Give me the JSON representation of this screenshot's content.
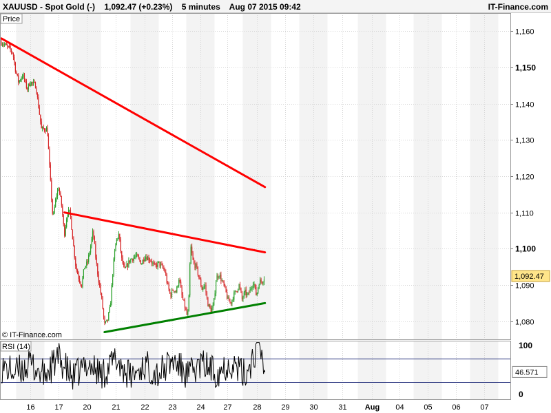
{
  "header": {
    "symbol": "XAUUSD - Spot Gold (-)",
    "last": "1,092.47 (+0.23%)",
    "interval": "5 minutes",
    "datetime": "Aug 07 2015 09:42",
    "brand": "IT-Finance.com"
  },
  "price_panel": {
    "label": "Price",
    "watermark": "© IT-Finance.com",
    "current_price_label": "1,092.47",
    "current_price": 1092.47
  },
  "rsi_panel": {
    "label": "RSI (14)",
    "current_label": "46.571",
    "current": 46.571
  },
  "colors": {
    "up": "#2ca02c",
    "down": "#d62728",
    "trendline_resistance": "#ff0000",
    "trendline_support": "#008000",
    "price_tag": "#ffe58a",
    "rsi_band": "#1e2a78"
  },
  "chart_data": [
    {
      "type": "line",
      "title": "",
      "ylim": [
        1075,
        1165
      ],
      "y_scale": "linear",
      "y_ticks": [
        1080,
        1090,
        1100,
        1110,
        1120,
        1130,
        1140,
        1150,
        1160
      ],
      "y_tick_labels": [
        "1,080",
        "1,090",
        "1,100",
        "1,110",
        "1,120",
        "1,130",
        "1,140",
        "1,150",
        "1,160"
      ],
      "y_tick_bold": [
        false,
        false,
        true,
        false,
        false,
        false,
        false,
        true,
        false
      ],
      "x_index_range": [
        0,
        17.2
      ],
      "x_tick_labels": [
        "16",
        "17",
        "20",
        "21",
        "22",
        "23",
        "24",
        "27",
        "28",
        "29",
        "30",
        "31",
        "Aug",
        "04",
        "05",
        "06",
        "07"
      ],
      "x_tick_bold": [
        false,
        false,
        false,
        false,
        false,
        false,
        false,
        false,
        false,
        false,
        false,
        false,
        true,
        false,
        false,
        false,
        false
      ],
      "grid": true,
      "legend": "none",
      "series": [
        {
          "values": [
            [
              0.0,
              1157
            ],
            [
              0.15,
              1156
            ],
            [
              0.3,
              1155
            ],
            [
              0.4,
              1154
            ],
            [
              0.5,
              1149
            ],
            [
              0.6,
              1146
            ],
            [
              0.75,
              1148
            ],
            [
              0.9,
              1144
            ],
            [
              1.0,
              1146
            ],
            [
              1.2,
              1145
            ],
            [
              1.3,
              1139
            ],
            [
              1.4,
              1133
            ],
            [
              1.6,
              1133
            ],
            [
              1.7,
              1120
            ],
            [
              1.8,
              1108
            ],
            [
              1.9,
              1114
            ],
            [
              2.0,
              1117
            ],
            [
              2.1,
              1112
            ],
            [
              2.2,
              1104
            ],
            [
              2.3,
              1110
            ],
            [
              2.4,
              1110
            ],
            [
              2.5,
              1102
            ],
            [
              2.6,
              1095
            ],
            [
              2.7,
              1092
            ],
            [
              2.8,
              1090
            ],
            [
              2.9,
              1095
            ],
            [
              3.0,
              1096
            ],
            [
              3.1,
              1100
            ],
            [
              3.2,
              1105
            ],
            [
              3.3,
              1097
            ],
            [
              3.4,
              1091
            ],
            [
              3.5,
              1086
            ],
            [
              3.6,
              1079
            ],
            [
              3.7,
              1080
            ],
            [
              3.8,
              1084
            ],
            [
              3.9,
              1095
            ],
            [
              4.0,
              1102
            ],
            [
              4.1,
              1104
            ],
            [
              4.2,
              1097
            ],
            [
              4.3,
              1094
            ],
            [
              4.5,
              1097
            ],
            [
              4.7,
              1098
            ],
            [
              4.9,
              1096
            ],
            [
              5.0,
              1098
            ],
            [
              5.2,
              1097
            ],
            [
              5.35,
              1095
            ],
            [
              5.5,
              1096
            ],
            [
              5.7,
              1094
            ],
            [
              5.8,
              1090
            ],
            [
              5.9,
              1087
            ],
            [
              6.0,
              1089
            ],
            [
              6.1,
              1088
            ],
            [
              6.2,
              1092
            ],
            [
              6.3,
              1087
            ],
            [
              6.4,
              1084
            ],
            [
              6.5,
              1081
            ],
            [
              6.55,
              1087
            ],
            [
              6.6,
              1101
            ],
            [
              6.7,
              1096
            ],
            [
              6.8,
              1095
            ],
            [
              6.9,
              1092
            ],
            [
              7.0,
              1089
            ],
            [
              7.1,
              1090
            ],
            [
              7.2,
              1085
            ],
            [
              7.3,
              1083
            ],
            [
              7.4,
              1084
            ],
            [
              7.5,
              1092
            ],
            [
              7.6,
              1093
            ],
            [
              7.7,
              1091
            ],
            [
              7.8,
              1089
            ],
            [
              7.9,
              1086
            ],
            [
              8.0,
              1085
            ],
            [
              8.1,
              1087
            ],
            [
              8.3,
              1090
            ],
            [
              8.4,
              1086
            ],
            [
              8.5,
              1088
            ],
            [
              8.6,
              1087
            ],
            [
              8.7,
              1089
            ],
            [
              8.8,
              1091
            ],
            [
              8.9,
              1087
            ],
            [
              9.0,
              1091
            ],
            [
              9.1,
              1091
            ],
            [
              9.2,
              1092.47
            ]
          ]
        }
      ],
      "annotations": [
        {
          "type": "trendline",
          "color": "red",
          "points": [
            [
              0.0,
              1158
            ],
            [
              9.2,
              1117
            ]
          ]
        },
        {
          "type": "trendline",
          "color": "red",
          "points": [
            [
              2.2,
              1110
            ],
            [
              9.2,
              1099
            ]
          ]
        },
        {
          "type": "trendline",
          "color": "green",
          "points": [
            [
              3.6,
              1077
            ],
            [
              9.2,
              1085
            ]
          ]
        }
      ]
    },
    {
      "type": "line",
      "title": "RSI (14)",
      "ylim": [
        0,
        100
      ],
      "y_ticks": [
        0,
        100
      ],
      "y_tick_labels": [
        "0",
        "100"
      ],
      "levels": [
        30,
        70
      ],
      "series": [
        {
          "name": "RSI (14)",
          "values": [
            [
              0.0,
              55
            ],
            [
              0.5,
              45
            ],
            [
              1.0,
              60
            ],
            [
              1.5,
              40
            ],
            [
              2.0,
              70
            ],
            [
              2.5,
              35
            ],
            [
              3.0,
              62
            ],
            [
              3.5,
              42
            ],
            [
              4.0,
              68
            ],
            [
              4.5,
              38
            ],
            [
              5.0,
              58
            ],
            [
              5.5,
              44
            ],
            [
              6.0,
              66
            ],
            [
              6.5,
              40
            ],
            [
              7.0,
              60
            ],
            [
              7.5,
              46
            ],
            [
              8.0,
              63
            ],
            [
              8.5,
              41
            ],
            [
              9.0,
              95
            ],
            [
              9.2,
              46.571
            ]
          ]
        }
      ]
    }
  ]
}
